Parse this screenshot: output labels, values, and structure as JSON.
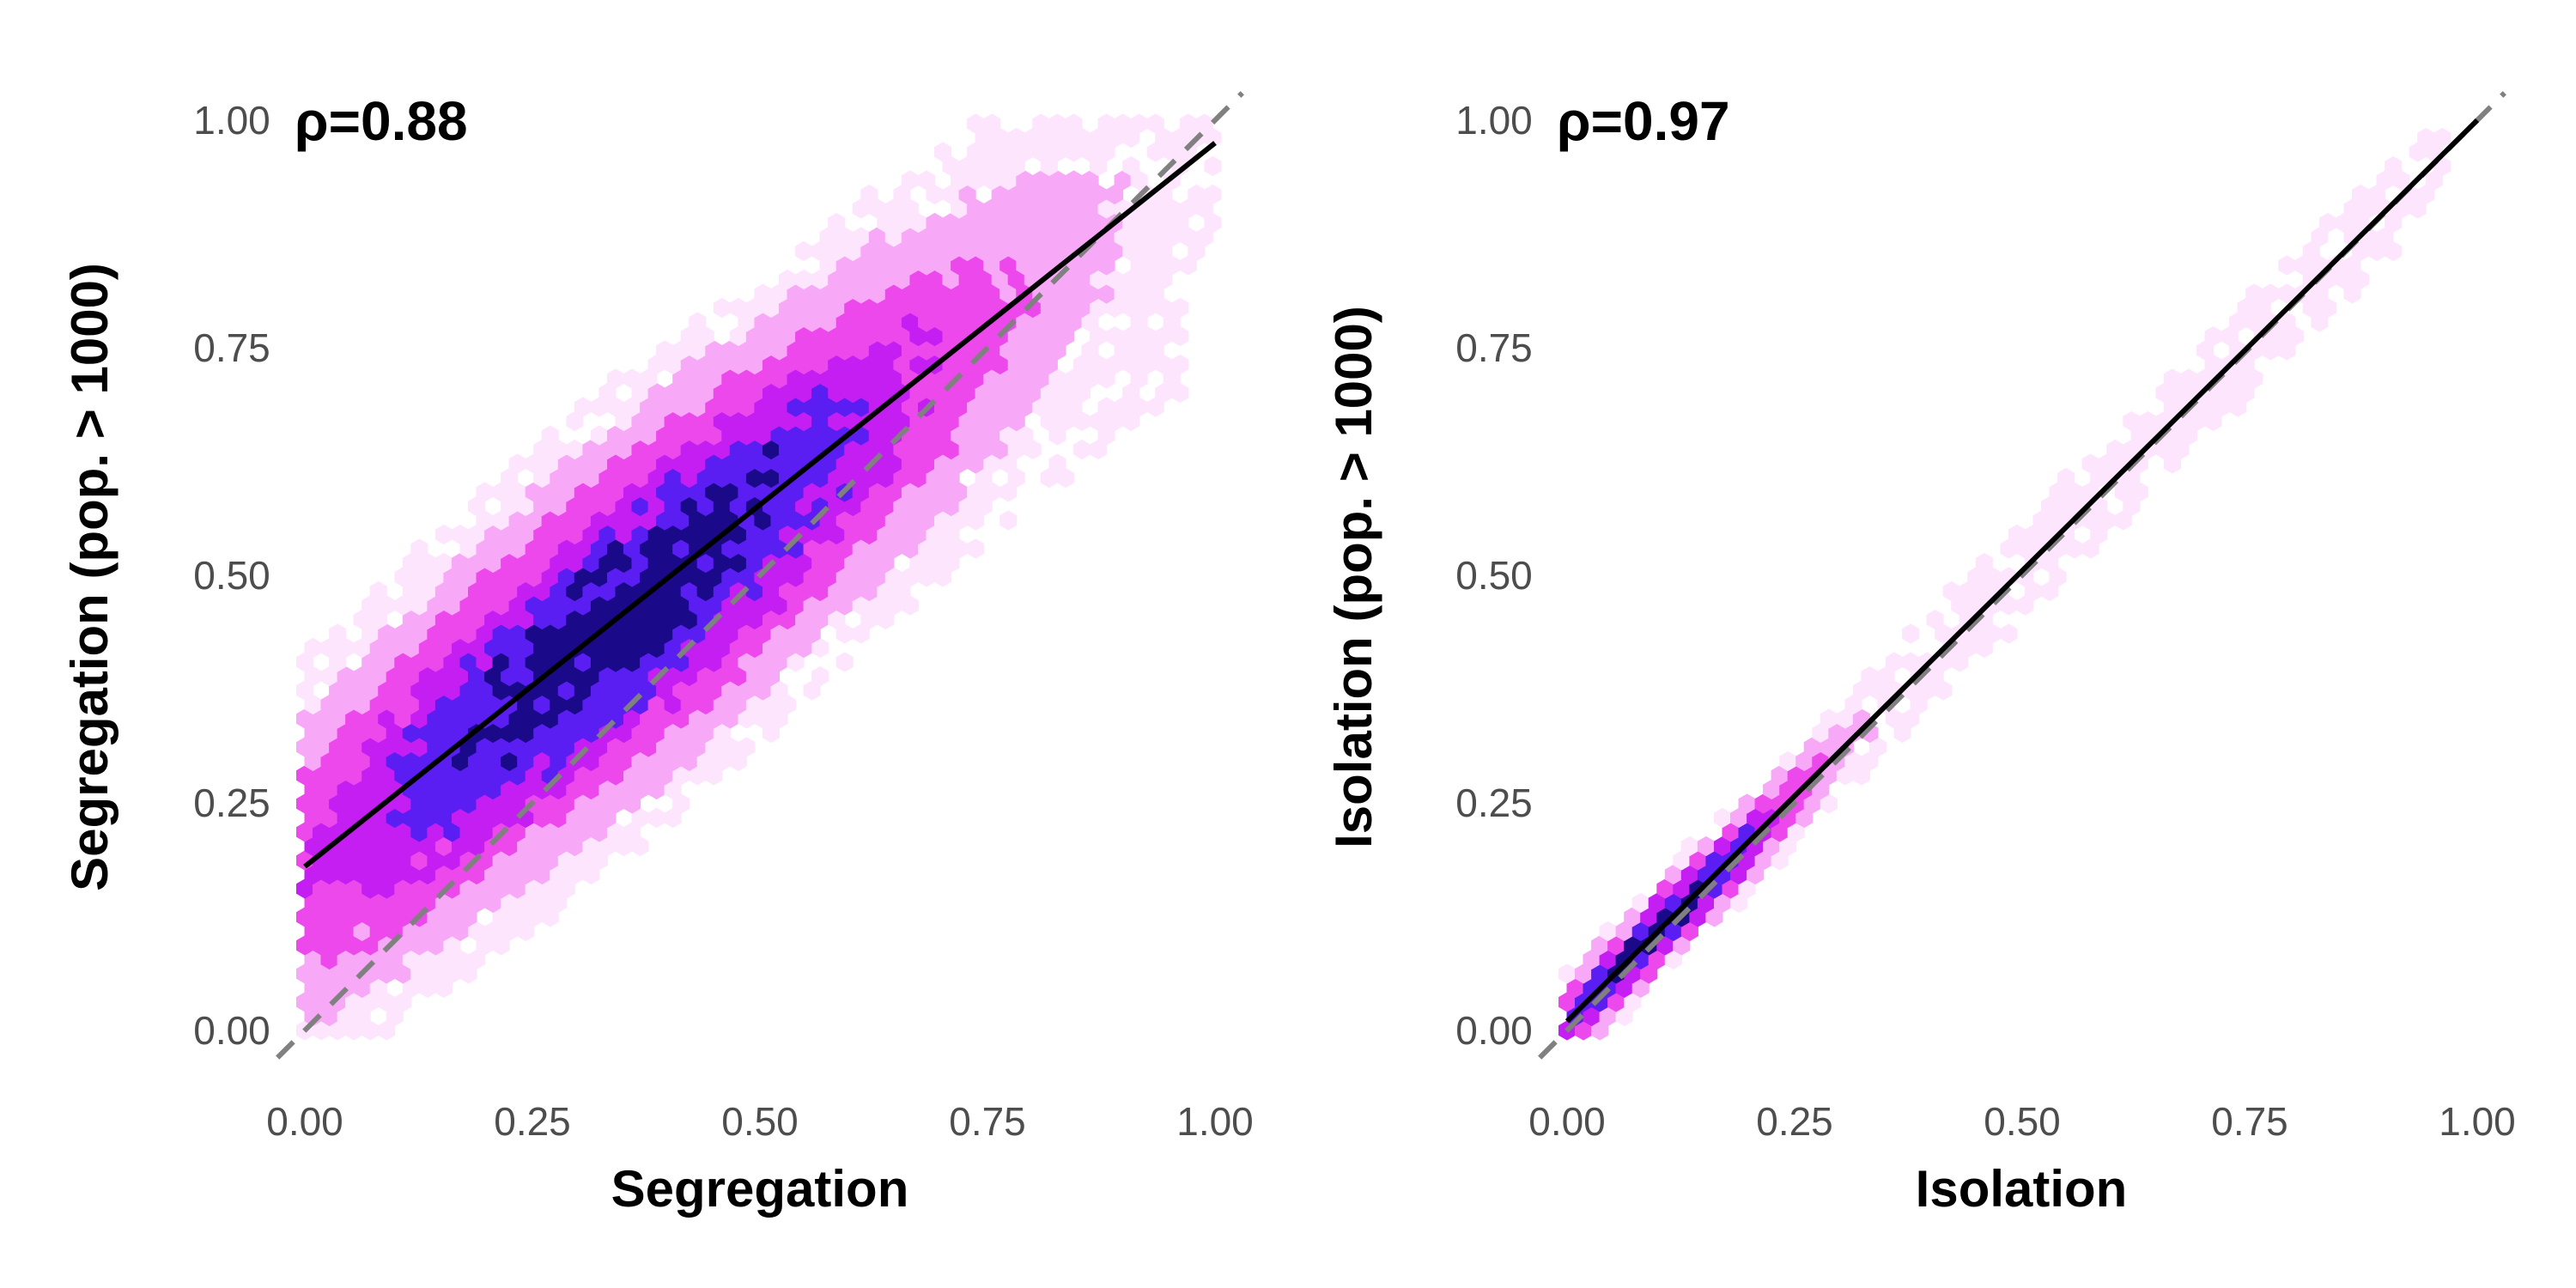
{
  "chart_data": [
    {
      "type": "hexbin",
      "annotation": "ρ=0.88",
      "xlabel": "Segregation",
      "ylabel": "Segregation (pop. > 1000)",
      "xlim": [
        -0.03,
        1.03
      ],
      "ylim": [
        -0.05,
        1.03
      ],
      "xticks": [
        "0.00",
        "0.25",
        "0.50",
        "0.75",
        "1.00"
      ],
      "yticks": [
        "0.00",
        "0.25",
        "0.50",
        "0.75",
        "1.00"
      ],
      "grid": false,
      "reference_line": {
        "style": "dashed",
        "color": "#808080",
        "x": [
          -0.03,
          1.03
        ],
        "y": [
          -0.03,
          1.03
        ]
      },
      "fit_line": {
        "color": "#000000",
        "x": [
          0.0,
          1.0
        ],
        "y": [
          0.18,
          0.975
        ]
      },
      "density_model": {
        "slope": 0.8,
        "intercept": 0.175,
        "spread": 0.11,
        "peak_x": 0.35
      }
    },
    {
      "type": "hexbin",
      "annotation": "ρ=0.97",
      "xlabel": "Isolation",
      "ylabel": "Isolation (pop. > 1000)",
      "xlim": [
        -0.03,
        1.03
      ],
      "ylim": [
        -0.05,
        1.03
      ],
      "xticks": [
        "0.00",
        "0.25",
        "0.50",
        "0.75",
        "1.00"
      ],
      "yticks": [
        "0.00",
        "0.25",
        "0.50",
        "0.75",
        "1.00"
      ],
      "grid": false,
      "reference_line": {
        "style": "dashed",
        "color": "#808080",
        "x": [
          -0.03,
          1.03
        ],
        "y": [
          -0.03,
          1.03
        ]
      },
      "fit_line": {
        "color": "#000000",
        "x": [
          0.0,
          1.0
        ],
        "y": [
          0.01,
          1.0
        ]
      },
      "density_model": {
        "slope": 0.99,
        "intercept": 0.01,
        "spread": 0.025,
        "peak_x": 0.1
      }
    }
  ],
  "colors": {
    "fill_scale": [
      "#fde5fd",
      "#f7a8f7",
      "#ec48ec",
      "#c41ef2",
      "#5a1ef2",
      "#1a0a8a"
    ],
    "reference_line": "#808080",
    "fit_line": "#000000"
  }
}
